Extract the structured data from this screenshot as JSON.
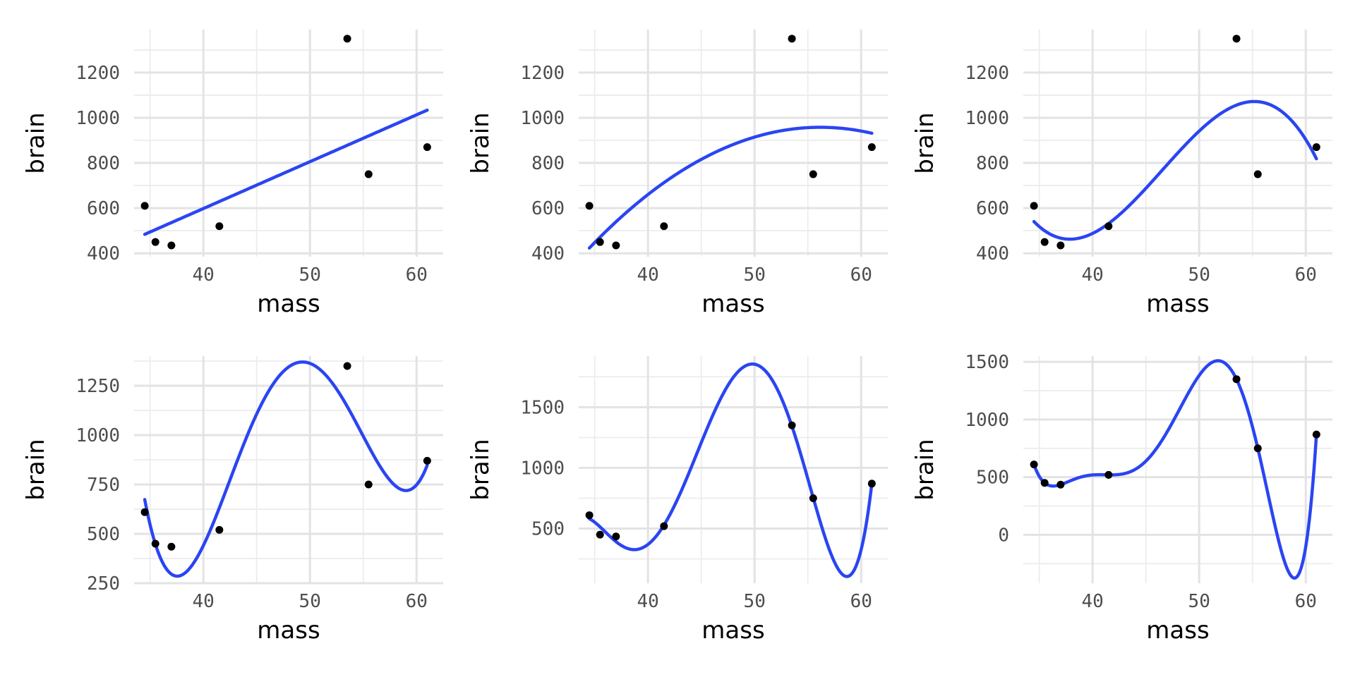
{
  "chart_data": [
    {
      "type": "scatter",
      "xlabel": "mass",
      "ylabel": "brain",
      "xlim": [
        33.5,
        62.5
      ],
      "ylim": [
        385,
        1390
      ],
      "xticks": [
        40,
        50,
        60
      ],
      "yticks": [
        400,
        600,
        800,
        1000,
        1200
      ],
      "fit_degree": 1,
      "points": {
        "x": [
          34.5,
          35.5,
          37.0,
          41.5,
          53.5,
          55.5,
          61.0
        ],
        "y": [
          610,
          450,
          435,
          520,
          1350,
          750,
          870
        ]
      }
    },
    {
      "type": "scatter",
      "xlabel": "mass",
      "ylabel": "brain",
      "xlim": [
        33.5,
        62.5
      ],
      "ylim": [
        385,
        1390
      ],
      "xticks": [
        40,
        50,
        60
      ],
      "yticks": [
        400,
        600,
        800,
        1000,
        1200
      ],
      "fit_degree": 2,
      "points": {
        "x": [
          34.5,
          35.5,
          37.0,
          41.5,
          53.5,
          55.5,
          61.0
        ],
        "y": [
          610,
          450,
          435,
          520,
          1350,
          750,
          870
        ]
      }
    },
    {
      "type": "scatter",
      "xlabel": "mass",
      "ylabel": "brain",
      "xlim": [
        33.5,
        62.5
      ],
      "ylim": [
        385,
        1390
      ],
      "xticks": [
        40,
        50,
        60
      ],
      "yticks": [
        400,
        600,
        800,
        1000,
        1200
      ],
      "fit_degree": 3,
      "points": {
        "x": [
          34.5,
          35.5,
          37.0,
          41.5,
          53.5,
          55.5,
          61.0
        ],
        "y": [
          610,
          450,
          435,
          520,
          1350,
          750,
          870
        ]
      }
    },
    {
      "type": "scatter",
      "xlabel": "mass",
      "ylabel": "brain",
      "xlim": [
        33.5,
        62.5
      ],
      "ylim": [
        250,
        1400
      ],
      "xticks": [
        40,
        50,
        60
      ],
      "yticks": [
        250,
        500,
        750,
        1000,
        1250
      ],
      "fit_degree": 4,
      "points": {
        "x": [
          34.5,
          35.5,
          37.0,
          41.5,
          53.5,
          55.5,
          61.0
        ],
        "y": [
          610,
          450,
          435,
          520,
          1350,
          750,
          870
        ]
      }
    },
    {
      "type": "scatter",
      "xlabel": "mass",
      "ylabel": "brain",
      "xlim": [
        33.5,
        62.5
      ],
      "ylim": [
        50,
        1920
      ],
      "xticks": [
        40,
        50,
        60
      ],
      "yticks": [
        500,
        1000,
        1500
      ],
      "fit_degree": 5,
      "points": {
        "x": [
          34.5,
          35.5,
          37.0,
          41.5,
          53.5,
          55.5,
          61.0
        ],
        "y": [
          610,
          450,
          435,
          520,
          1350,
          750,
          870
        ]
      }
    },
    {
      "type": "scatter",
      "xlabel": "mass",
      "ylabel": "brain",
      "xlim": [
        33.5,
        62.5
      ],
      "ylim": [
        -420,
        1550
      ],
      "xticks": [
        40,
        50,
        60
      ],
      "yticks": [
        0,
        500,
        1000,
        1500
      ],
      "fit_degree": 6,
      "points": {
        "x": [
          34.5,
          35.5,
          37.0,
          41.5,
          53.5,
          55.5,
          61.0
        ],
        "y": [
          610,
          450,
          435,
          520,
          1350,
          750,
          870
        ]
      }
    }
  ],
  "colors": {
    "fit_line": "#2a45f2",
    "points": "#000000"
  }
}
